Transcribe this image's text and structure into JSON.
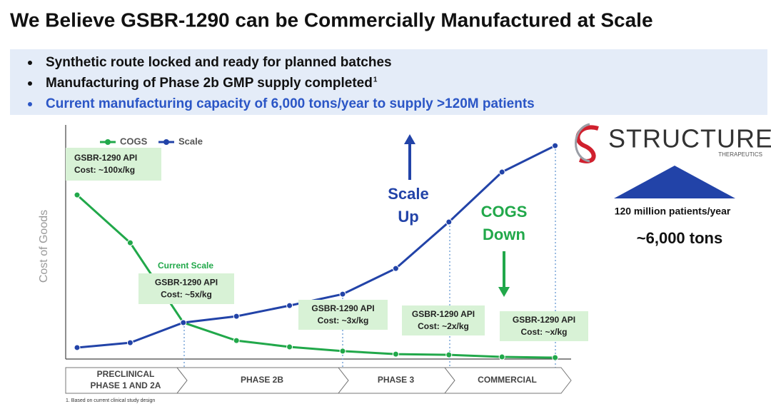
{
  "title": "We Believe GSBR-1290 can be Commercially Manufactured at Scale",
  "bullets": [
    {
      "text": "Synthetic route locked and ready for planned batches"
    },
    {
      "text": "Manufacturing of Phase 2b GMP supply completed",
      "sup": "1"
    },
    {
      "text": "Current manufacturing capacity of 6,000 tons/year to supply >120M patients"
    }
  ],
  "chart_data": {
    "type": "line",
    "y_label": "Cost of Goods",
    "categories": [
      null,
      null,
      null,
      null,
      null,
      null,
      null,
      null,
      null,
      null
    ],
    "ylim": [
      0,
      100
    ],
    "series": [
      {
        "name": "COGS",
        "color": "#21a84a",
        "values": [
          70,
          49.5,
          15.3,
          7.6,
          4.9,
          3.1,
          1.8,
          1.5,
          0.6,
          0.3
        ]
      },
      {
        "name": "Scale",
        "color": "#2243a8",
        "values": [
          4.6,
          6.7,
          15.3,
          18,
          22.6,
          27.5,
          38.5,
          58.4,
          79.8,
          91.1
        ]
      }
    ],
    "annotations": [
      {
        "lines": [
          "GSBR-1290 API",
          "Cost: ~100x/kg"
        ]
      },
      {
        "lines": [
          "GSBR-1290 API",
          "Cost: ~5x/kg"
        ],
        "caption": "Current Scale"
      },
      {
        "lines": [
          "GSBR-1290 API",
          "Cost: ~3x/kg"
        ]
      },
      {
        "lines": [
          "GSBR-1290 API",
          "Cost: ~2x/kg"
        ]
      },
      {
        "lines": [
          "GSBR-1290 API",
          "Cost: ~x/kg"
        ]
      }
    ],
    "scale_up": [
      "Scale",
      "Up"
    ],
    "cogs_down": [
      "COGS",
      "Down"
    ],
    "phases": [
      [
        "PRECLINICAL",
        "PHASE 1 AND 2A"
      ],
      [
        "PHASE 2B"
      ],
      [
        "PHASE 3"
      ],
      [
        "COMMERCIAL"
      ]
    ]
  },
  "logo": {
    "name": "STRUCTURE",
    "sub": "THERAPEUTICS"
  },
  "capacity": {
    "patients": "120 million patients/year",
    "tons": "~6,000 tons"
  },
  "footnote": "1. Based on current clinical study design"
}
